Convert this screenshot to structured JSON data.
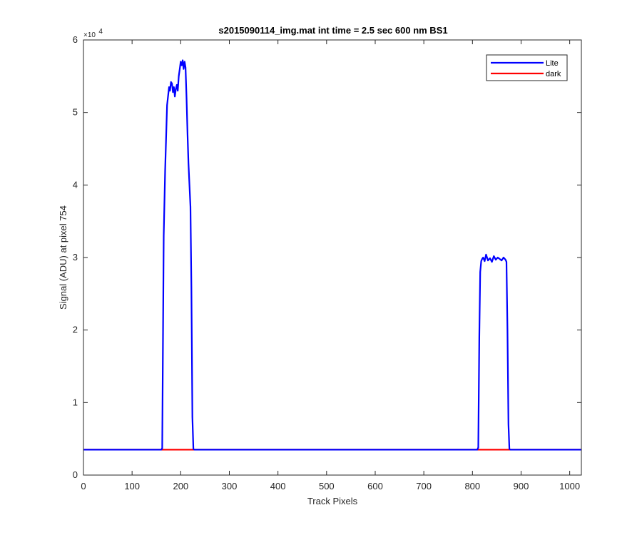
{
  "chart_data": {
    "type": "line",
    "title": "s2015090114_img.mat int time = 2.5 sec  600 nm BS1",
    "xlabel": "Track Pixels",
    "ylabel": "Signal (ADU) at pixel 754",
    "xlim": [
      0,
      1024
    ],
    "ylim": [
      0,
      60000
    ],
    "x_ticks": [
      0,
      100,
      200,
      300,
      400,
      500,
      600,
      700,
      800,
      900,
      1000
    ],
    "y_ticks": [
      0,
      10000,
      20000,
      30000,
      40000,
      50000,
      60000
    ],
    "y_tick_labels": [
      "0",
      "1",
      "2",
      "3",
      "4",
      "5",
      "6"
    ],
    "y_multiplier_base": "×10",
    "y_multiplier_exp": "4",
    "legend_location": "top-right",
    "grid": false,
    "series": [
      {
        "name": "Lite",
        "color": "#0000ff",
        "x": [
          0,
          160,
          162,
          165,
          168,
          172,
          176,
          178,
          180,
          182,
          184,
          186,
          188,
          190,
          192,
          194,
          196,
          198,
          200,
          202,
          204,
          206,
          208,
          210,
          212,
          214,
          216,
          218,
          220,
          222,
          224,
          226,
          228,
          230,
          232,
          234,
          800,
          810,
          812,
          814,
          816,
          818,
          820,
          822,
          825,
          828,
          832,
          836,
          840,
          844,
          848,
          852,
          856,
          860,
          864,
          868,
          870,
          872,
          874,
          876,
          878,
          1024
        ],
        "y": [
          3500,
          3500,
          3700,
          33000,
          42000,
          51000,
          53500,
          53000,
          54200,
          54000,
          52800,
          53500,
          52200,
          53200,
          53800,
          53000,
          55000,
          56000,
          57000,
          56500,
          57200,
          56000,
          57000,
          56200,
          52000,
          47000,
          43000,
          40000,
          37000,
          26000,
          8000,
          3600,
          3500,
          3500,
          3500,
          3500,
          3500,
          3500,
          3800,
          19000,
          28000,
          29500,
          29800,
          30000,
          29500,
          30400,
          29600,
          29900,
          29400,
          30200,
          29700,
          30000,
          29800,
          29600,
          30000,
          29700,
          29400,
          20000,
          7000,
          3600,
          3500,
          3500
        ]
      },
      {
        "name": "dark",
        "color": "#ff0000",
        "x": [
          0,
          1024
        ],
        "y": [
          3500,
          3500
        ]
      }
    ]
  }
}
